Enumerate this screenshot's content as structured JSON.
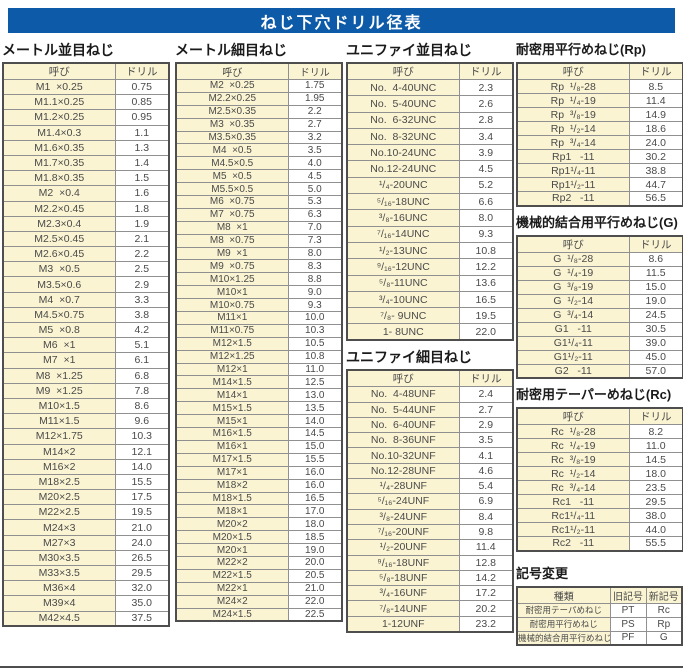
{
  "title": "ねじ下穴ドリル径表",
  "colors": {
    "title_bar_bg": "#0d5aa8",
    "cell_cream": "#faf4d2",
    "border_dark": "#4e4e4e",
    "border_light": "#909090",
    "text": "#4a4a4a"
  },
  "tables": {
    "metric_coarse": {
      "title": "メートル並目ねじ",
      "headers": [
        "呼び",
        "ドリル"
      ],
      "rows": [
        [
          "M1  ×0.25",
          "0.75"
        ],
        [
          "M1.1×0.25",
          "0.85"
        ],
        [
          "M1.2×0.25",
          "0.95"
        ],
        [
          "M1.4×0.3",
          "1.1"
        ],
        [
          "M1.6×0.35",
          "1.3"
        ],
        [
          "M1.7×0.35",
          "1.4"
        ],
        [
          "M1.8×0.35",
          "1.5"
        ],
        [
          "M2  ×0.4",
          "1.6"
        ],
        [
          "M2.2×0.45",
          "1.8"
        ],
        [
          "M2.3×0.4",
          "1.9"
        ],
        [
          "M2.5×0.45",
          "2.1"
        ],
        [
          "M2.6×0.45",
          "2.2"
        ],
        [
          "M3  ×0.5",
          "2.5"
        ],
        [
          "M3.5×0.6",
          "2.9"
        ],
        [
          "M4  ×0.7",
          "3.3"
        ],
        [
          "M4.5×0.75",
          "3.8"
        ],
        [
          "M5  ×0.8",
          "4.2"
        ],
        [
          "M6  ×1",
          "5.1"
        ],
        [
          "M7  ×1",
          "6.1"
        ],
        [
          "M8  ×1.25",
          "6.8"
        ],
        [
          "M9  ×1.25",
          "7.8"
        ],
        [
          "M10×1.5",
          "8.6"
        ],
        [
          "M11×1.5",
          "9.6"
        ],
        [
          "M12×1.75",
          "10.3"
        ],
        [
          "M14×2",
          "12.1"
        ],
        [
          "M16×2",
          "14.0"
        ],
        [
          "M18×2.5",
          "15.5"
        ],
        [
          "M20×2.5",
          "17.5"
        ],
        [
          "M22×2.5",
          "19.5"
        ],
        [
          "M24×3",
          "21.0"
        ],
        [
          "M27×3",
          "24.0"
        ],
        [
          "M30×3.5",
          "26.5"
        ],
        [
          "M33×3.5",
          "29.5"
        ],
        [
          "M36×4",
          "32.0"
        ],
        [
          "M39×4",
          "35.0"
        ],
        [
          "M42×4.5",
          "37.5"
        ]
      ]
    },
    "metric_fine": {
      "title": "メートル細目ねじ",
      "headers": [
        "呼び",
        "ドリル"
      ],
      "rows": [
        [
          "M2  ×0.25",
          "1.75"
        ],
        [
          "M2.2×0.25",
          "1.95"
        ],
        [
          "M2.5×0.35",
          "2.2"
        ],
        [
          "M3  ×0.35",
          "2.7"
        ],
        [
          "M3.5×0.35",
          "3.2"
        ],
        [
          "M4  ×0.5",
          "3.5"
        ],
        [
          "M4.5×0.5",
          "4.0"
        ],
        [
          "M5  ×0.5",
          "4.5"
        ],
        [
          "M5.5×0.5",
          "5.0"
        ],
        [
          "M6  ×0.75",
          "5.3"
        ],
        [
          "M7  ×0.75",
          "6.3"
        ],
        [
          "M8  ×1",
          "7.0"
        ],
        [
          "M8  ×0.75",
          "7.3"
        ],
        [
          "M9  ×1",
          "8.0"
        ],
        [
          "M9  ×0.75",
          "8.3"
        ],
        [
          "M10×1.25",
          "8.8"
        ],
        [
          "M10×1",
          "9.0"
        ],
        [
          "M10×0.75",
          "9.3"
        ],
        [
          "M11×1",
          "10.0"
        ],
        [
          "M11×0.75",
          "10.3"
        ],
        [
          "M12×1.5",
          "10.5"
        ],
        [
          "M12×1.25",
          "10.8"
        ],
        [
          "M12×1",
          "11.0"
        ],
        [
          "M14×1.5",
          "12.5"
        ],
        [
          "M14×1",
          "13.0"
        ],
        [
          "M15×1.5",
          "13.5"
        ],
        [
          "M15×1",
          "14.0"
        ],
        [
          "M16×1.5",
          "14.5"
        ],
        [
          "M16×1",
          "15.0"
        ],
        [
          "M17×1.5",
          "15.5"
        ],
        [
          "M17×1",
          "16.0"
        ],
        [
          "M18×2",
          "16.0"
        ],
        [
          "M18×1.5",
          "16.5"
        ],
        [
          "M18×1",
          "17.0"
        ],
        [
          "M20×2",
          "18.0"
        ],
        [
          "M20×1.5",
          "18.5"
        ],
        [
          "M20×1",
          "19.0"
        ],
        [
          "M22×2",
          "20.0"
        ],
        [
          "M22×1.5",
          "20.5"
        ],
        [
          "M22×1",
          "21.0"
        ],
        [
          "M24×2",
          "22.0"
        ],
        [
          "M24×1.5",
          "22.5"
        ]
      ]
    },
    "unified_coarse": {
      "title": "ユニファイ並目ねじ",
      "headers": [
        "呼び",
        "ドリル"
      ],
      "rows": [
        [
          "No.  4-40UNC",
          "2.3"
        ],
        [
          "No.  5-40UNC",
          "2.6"
        ],
        [
          "No.  6-32UNC",
          "2.8"
        ],
        [
          "No.  8-32UNC",
          "3.4"
        ],
        [
          "No.10-24UNC",
          "3.9"
        ],
        [
          "No.12-24UNC",
          "4.5"
        ],
        [
          "¹/₄-20UNC",
          "5.2"
        ],
        [
          "⁵/₁₆-18UNC",
          "6.6"
        ],
        [
          "³/₈-16UNC",
          "8.0"
        ],
        [
          "⁷/₁₆-14UNC",
          "9.3"
        ],
        [
          "¹/₂-13UNC",
          "10.8"
        ],
        [
          "⁹/₁₆-12UNC",
          "12.2"
        ],
        [
          "⁵/₈-11UNC",
          "13.6"
        ],
        [
          "³/₄-10UNC",
          "16.5"
        ],
        [
          "⁷/₈- 9UNC",
          "19.5"
        ],
        [
          "1- 8UNC",
          "22.0"
        ]
      ]
    },
    "unified_fine": {
      "title": "ユニファイ細目ねじ",
      "headers": [
        "呼び",
        "ドリル"
      ],
      "rows": [
        [
          "No.  4-48UNF",
          "2.4"
        ],
        [
          "No.  5-44UNF",
          "2.7"
        ],
        [
          "No.  6-40UNF",
          "2.9"
        ],
        [
          "No.  8-36UNF",
          "3.5"
        ],
        [
          "No.10-32UNF",
          "4.1"
        ],
        [
          "No.12-28UNF",
          "4.6"
        ],
        [
          "¹/₄-28UNF",
          "5.4"
        ],
        [
          "⁵/₁₆-24UNF",
          "6.9"
        ],
        [
          "³/₈-24UNF",
          "8.4"
        ],
        [
          "⁷/₁₆-20UNF",
          "9.8"
        ],
        [
          "¹/₂-20UNF",
          "11.4"
        ],
        [
          "⁹/₁₆-18UNF",
          "12.8"
        ],
        [
          "⁵/₈-18UNF",
          "14.2"
        ],
        [
          "³/₄-16UNF",
          "17.2"
        ],
        [
          "⁷/₈-14UNF",
          "20.2"
        ],
        [
          "1-12UNF",
          "23.2"
        ]
      ]
    },
    "rp": {
      "title": "耐密用平行めねじ(Rp)",
      "headers": [
        "呼び",
        "ドリル"
      ],
      "rows": [
        [
          "Rp  ¹/₈-28",
          "8.5"
        ],
        [
          "Rp  ¹/₄-19",
          "11.4"
        ],
        [
          "Rp  ³/₈-19",
          "14.9"
        ],
        [
          "Rp  ¹/₂-14",
          "18.6"
        ],
        [
          "Rp  ³/₄-14",
          "24.0"
        ],
        [
          "Rp1   -11",
          "30.2"
        ],
        [
          "Rp1¹/₄-11",
          "38.8"
        ],
        [
          "Rp1¹/₂-11",
          "44.7"
        ],
        [
          "Rp2   -11",
          "56.5"
        ]
      ]
    },
    "g": {
      "title": "機械的結合用平行めねじ(G)",
      "headers": [
        "呼び",
        "ドリル"
      ],
      "rows": [
        [
          "G  ¹/₈-28",
          "8.6"
        ],
        [
          "G  ¹/₄-19",
          "11.5"
        ],
        [
          "G  ³/₈-19",
          "15.0"
        ],
        [
          "G  ¹/₂-14",
          "19.0"
        ],
        [
          "G  ³/₄-14",
          "24.5"
        ],
        [
          "G1   -11",
          "30.5"
        ],
        [
          "G1¹/₄-11",
          "39.0"
        ],
        [
          "G1¹/₂-11",
          "45.0"
        ],
        [
          "G2   -11",
          "57.0"
        ]
      ]
    },
    "rc": {
      "title": "耐密用テーパーめねじ(Rc)",
      "headers": [
        "呼び",
        "ドリル"
      ],
      "rows": [
        [
          "Rc  ¹/₈-28",
          "8.2"
        ],
        [
          "Rc  ¹/₄-19",
          "11.0"
        ],
        [
          "Rc  ³/₈-19",
          "14.5"
        ],
        [
          "Rc  ¹/₂-14",
          "18.0"
        ],
        [
          "Rc  ³/₄-14",
          "23.5"
        ],
        [
          "Rc1   -11",
          "29.5"
        ],
        [
          "Rc1¹/₄-11",
          "38.0"
        ],
        [
          "Rc1¹/₂-11",
          "44.0"
        ],
        [
          "Rc2   -11",
          "55.5"
        ]
      ]
    },
    "symbol_change": {
      "title": "記号変更",
      "headers": [
        "種類",
        "旧記号",
        "新記号"
      ],
      "rows": [
        [
          "耐密用テーパめねじ",
          "PT",
          "Rc"
        ],
        [
          "耐密用平行めねじ",
          "PS",
          "Rp"
        ],
        [
          "機械的結合用平行めねじ",
          "PF",
          "G"
        ]
      ]
    }
  }
}
